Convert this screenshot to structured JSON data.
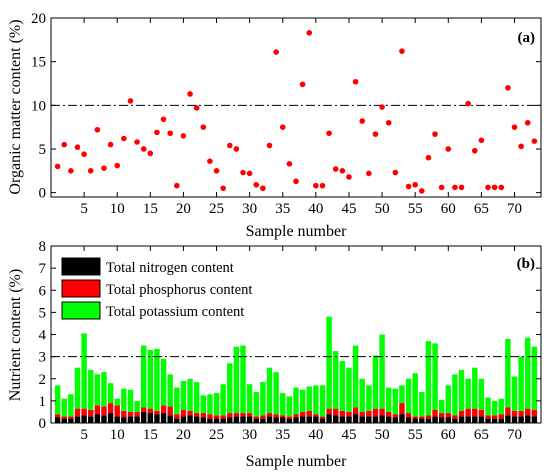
{
  "chart_data": [
    {
      "panel_label": "(a)",
      "type": "scatter",
      "xlabel": "Sample number",
      "ylabel": "Organic matter content (%)",
      "xlim": [
        0,
        74
      ],
      "ylim": [
        -0.5,
        20
      ],
      "x_ticks": [
        "5",
        "10",
        "15",
        "20",
        "25",
        "30",
        "35",
        "40",
        "45",
        "50",
        "55",
        "60",
        "65",
        "70"
      ],
      "y_ticks": [
        "0",
        "5",
        "10",
        "15",
        "20"
      ],
      "reference_line": {
        "y": 10,
        "style": "dash-dot"
      },
      "marker_color": "#ff0000",
      "series": [
        {
          "x": [
            1,
            2,
            3,
            4,
            5,
            6,
            7,
            8,
            9,
            10,
            11,
            12,
            13,
            14,
            15,
            16,
            17,
            18,
            19,
            20,
            21,
            22,
            23,
            24,
            25,
            26,
            27,
            28,
            29,
            30,
            31,
            32,
            33,
            34,
            35,
            36,
            37,
            38,
            39,
            40,
            41,
            42,
            43,
            44,
            45,
            46,
            47,
            48,
            49,
            50,
            51,
            52,
            53,
            54,
            55,
            56,
            57,
            58,
            59,
            60,
            61,
            62,
            63,
            64,
            65,
            66,
            67,
            68,
            69,
            70,
            71,
            72,
            73
          ],
          "values": [
            3.0,
            5.5,
            2.5,
            5.2,
            4.4,
            2.5,
            7.2,
            2.8,
            5.5,
            3.1,
            6.2,
            10.5,
            5.8,
            5.0,
            4.5,
            6.9,
            8.4,
            6.8,
            0.8,
            6.5,
            11.3,
            9.7,
            7.5,
            3.6,
            2.5,
            0.5,
            5.4,
            5.0,
            2.3,
            2.2,
            0.9,
            0.5,
            5.4,
            16.1,
            7.5,
            3.3,
            1.3,
            12.4,
            18.3,
            0.8,
            0.8,
            6.8,
            2.7,
            2.5,
            1.8,
            12.7,
            8.2,
            2.2,
            6.7,
            9.8,
            8.0,
            2.3,
            16.2,
            0.7,
            0.9,
            0.2,
            4.0,
            6.7,
            0.6,
            5.0,
            0.6,
            0.6,
            10.2,
            4.8,
            6.0,
            0.6,
            0.6,
            0.6,
            12.0,
            7.5,
            5.3,
            8.0,
            5.9
          ]
        }
      ]
    },
    {
      "panel_label": "(b)",
      "type": "bar",
      "stacked": true,
      "xlabel": "Sample number",
      "ylabel": "Nutrient content (%)",
      "xlim": [
        0,
        74
      ],
      "ylim": [
        0,
        8
      ],
      "x_ticks": [
        "5",
        "10",
        "15",
        "20",
        "25",
        "30",
        "35",
        "40",
        "45",
        "50",
        "55",
        "60",
        "65",
        "70"
      ],
      "y_ticks": [
        "0",
        "1",
        "2",
        "3",
        "4",
        "5",
        "6",
        "7",
        "8"
      ],
      "reference_line": {
        "y": 3,
        "style": "dash-dot"
      },
      "legend_position": "top-left",
      "categories": [
        1,
        2,
        3,
        4,
        5,
        6,
        7,
        8,
        9,
        10,
        11,
        12,
        13,
        14,
        15,
        16,
        17,
        18,
        19,
        20,
        21,
        22,
        23,
        24,
        25,
        26,
        27,
        28,
        29,
        30,
        31,
        32,
        33,
        34,
        35,
        36,
        37,
        38,
        39,
        40,
        41,
        42,
        43,
        44,
        45,
        46,
        47,
        48,
        49,
        50,
        51,
        52,
        53,
        54,
        55,
        56,
        57,
        58,
        59,
        60,
        61,
        62,
        63,
        64,
        65,
        66,
        67,
        68,
        69,
        70,
        71,
        72,
        73
      ],
      "series": [
        {
          "name": "Total nitrogen content",
          "color": "#000000",
          "values": [
            0.25,
            0.2,
            0.2,
            0.3,
            0.35,
            0.3,
            0.4,
            0.35,
            0.45,
            0.3,
            0.25,
            0.3,
            0.3,
            0.5,
            0.45,
            0.4,
            0.45,
            0.35,
            0.2,
            0.3,
            0.35,
            0.3,
            0.25,
            0.2,
            0.2,
            0.2,
            0.25,
            0.3,
            0.3,
            0.3,
            0.2,
            0.2,
            0.3,
            0.25,
            0.25,
            0.2,
            0.25,
            0.3,
            0.3,
            0.3,
            0.2,
            0.4,
            0.35,
            0.3,
            0.3,
            0.4,
            0.3,
            0.3,
            0.3,
            0.35,
            0.3,
            0.25,
            0.4,
            0.25,
            0.2,
            0.2,
            0.2,
            0.3,
            0.25,
            0.25,
            0.2,
            0.3,
            0.3,
            0.3,
            0.3,
            0.2,
            0.2,
            0.2,
            0.35,
            0.3,
            0.3,
            0.35,
            0.3
          ]
        },
        {
          "name": "Total phosphorus content",
          "color": "#ff0000",
          "values": [
            0.15,
            0.1,
            0.1,
            0.35,
            0.3,
            0.3,
            0.4,
            0.4,
            0.45,
            0.5,
            0.3,
            0.2,
            0.2,
            0.2,
            0.2,
            0.15,
            0.35,
            0.4,
            0.2,
            0.3,
            0.2,
            0.15,
            0.2,
            0.2,
            0.15,
            0.15,
            0.2,
            0.15,
            0.15,
            0.15,
            0.1,
            0.15,
            0.15,
            0.15,
            0.1,
            0.1,
            0.15,
            0.2,
            0.25,
            0.1,
            0.1,
            0.25,
            0.3,
            0.25,
            0.2,
            0.3,
            0.2,
            0.25,
            0.35,
            0.3,
            0.2,
            0.15,
            0.5,
            0.2,
            0.1,
            0.1,
            0.15,
            0.3,
            0.2,
            0.2,
            0.15,
            0.25,
            0.35,
            0.35,
            0.3,
            0.15,
            0.15,
            0.2,
            0.35,
            0.25,
            0.25,
            0.3,
            0.3
          ]
        },
        {
          "name": "Total potassium content",
          "color": "#00ff00",
          "values": [
            1.3,
            0.8,
            1.0,
            1.85,
            3.4,
            1.8,
            1.4,
            1.55,
            0.9,
            0.3,
            1.0,
            1.0,
            0.5,
            2.8,
            2.65,
            2.8,
            2.1,
            1.45,
            1.2,
            1.3,
            1.45,
            1.4,
            0.8,
            0.9,
            1.0,
            1.4,
            2.25,
            3.0,
            3.05,
            1.3,
            1.1,
            1.5,
            2.05,
            1.9,
            1.0,
            0.9,
            1.2,
            1.0,
            1.1,
            1.3,
            1.4,
            4.15,
            2.6,
            2.25,
            2.0,
            2.8,
            1.5,
            1.15,
            2.4,
            3.35,
            1.1,
            1.15,
            0.8,
            1.55,
            1.95,
            1.1,
            3.35,
            3.0,
            0.6,
            1.25,
            1.85,
            1.85,
            1.35,
            1.85,
            1.4,
            0.8,
            0.65,
            0.7,
            3.1,
            1.55,
            2.45,
            3.2,
            2.85
          ]
        }
      ]
    }
  ]
}
